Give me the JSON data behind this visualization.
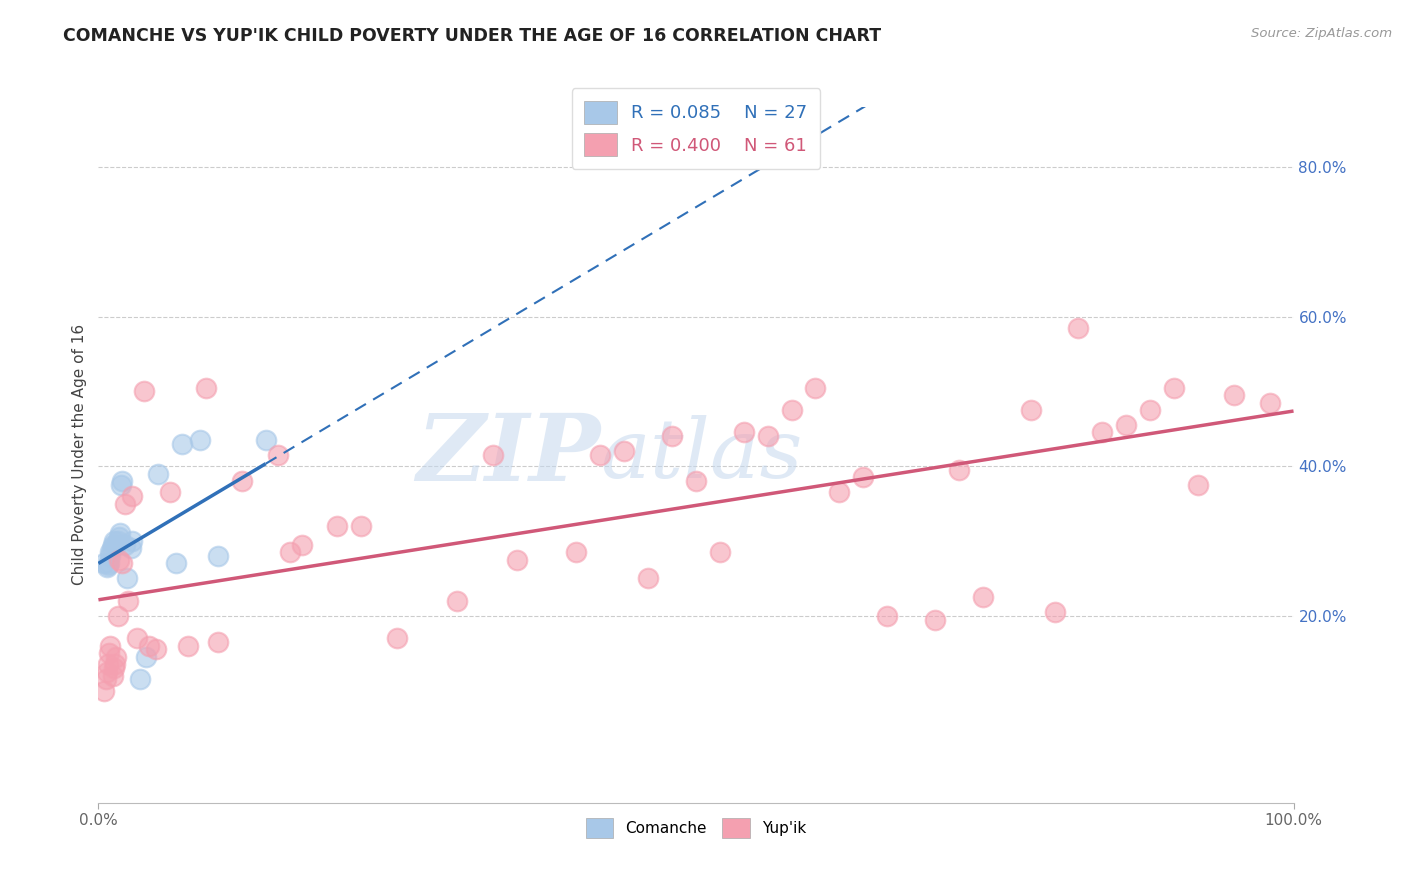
{
  "title": "COMANCHE VS YUP'IK CHILD POVERTY UNDER THE AGE OF 16 CORRELATION CHART",
  "source": "Source: ZipAtlas.com",
  "ylabel": "Child Poverty Under the Age of 16",
  "ytick_labels": [
    "20.0%",
    "40.0%",
    "60.0%",
    "80.0%"
  ],
  "ytick_values": [
    0.2,
    0.4,
    0.6,
    0.8
  ],
  "xlim": [
    0.0,
    1.0
  ],
  "ylim": [
    -0.05,
    0.88
  ],
  "comanche_R": 0.085,
  "comanche_N": 27,
  "yupik_R": 0.4,
  "yupik_N": 61,
  "comanche_color": "#a8c8e8",
  "yupik_color": "#f4a0b0",
  "comanche_line_color": "#3070b8",
  "yupik_line_color": "#d05878",
  "watermark_zip": "ZIP",
  "watermark_atlas": "atlas",
  "comanche_x": [
    0.005,
    0.007,
    0.008,
    0.009,
    0.01,
    0.01,
    0.011,
    0.012,
    0.013,
    0.015,
    0.016,
    0.017,
    0.018,
    0.019,
    0.02,
    0.022,
    0.024,
    0.027,
    0.028,
    0.035,
    0.04,
    0.05,
    0.065,
    0.07,
    0.085,
    0.1,
    0.14
  ],
  "comanche_y": [
    0.27,
    0.265,
    0.268,
    0.27,
    0.28,
    0.285,
    0.29,
    0.295,
    0.3,
    0.295,
    0.3,
    0.305,
    0.31,
    0.375,
    0.38,
    0.295,
    0.25,
    0.29,
    0.3,
    0.115,
    0.145,
    0.39,
    0.27,
    0.43,
    0.435,
    0.28,
    0.435
  ],
  "yupik_x": [
    0.005,
    0.006,
    0.007,
    0.008,
    0.009,
    0.01,
    0.012,
    0.013,
    0.014,
    0.015,
    0.016,
    0.017,
    0.02,
    0.022,
    0.025,
    0.028,
    0.032,
    0.038,
    0.042,
    0.048,
    0.06,
    0.075,
    0.09,
    0.1,
    0.12,
    0.15,
    0.16,
    0.17,
    0.2,
    0.22,
    0.25,
    0.3,
    0.33,
    0.35,
    0.4,
    0.42,
    0.44,
    0.46,
    0.48,
    0.5,
    0.52,
    0.54,
    0.56,
    0.58,
    0.6,
    0.62,
    0.64,
    0.66,
    0.7,
    0.72,
    0.74,
    0.78,
    0.8,
    0.82,
    0.84,
    0.86,
    0.88,
    0.9,
    0.92,
    0.95,
    0.98
  ],
  "yupik_y": [
    0.1,
    0.115,
    0.125,
    0.135,
    0.15,
    0.16,
    0.12,
    0.13,
    0.135,
    0.145,
    0.2,
    0.275,
    0.27,
    0.35,
    0.22,
    0.36,
    0.17,
    0.5,
    0.16,
    0.155,
    0.365,
    0.16,
    0.505,
    0.165,
    0.38,
    0.415,
    0.285,
    0.295,
    0.32,
    0.32,
    0.17,
    0.22,
    0.415,
    0.275,
    0.285,
    0.415,
    0.42,
    0.25,
    0.44,
    0.38,
    0.285,
    0.445,
    0.44,
    0.475,
    0.505,
    0.365,
    0.385,
    0.2,
    0.195,
    0.395,
    0.225,
    0.475,
    0.205,
    0.585,
    0.445,
    0.455,
    0.475,
    0.505,
    0.375,
    0.495,
    0.485
  ]
}
